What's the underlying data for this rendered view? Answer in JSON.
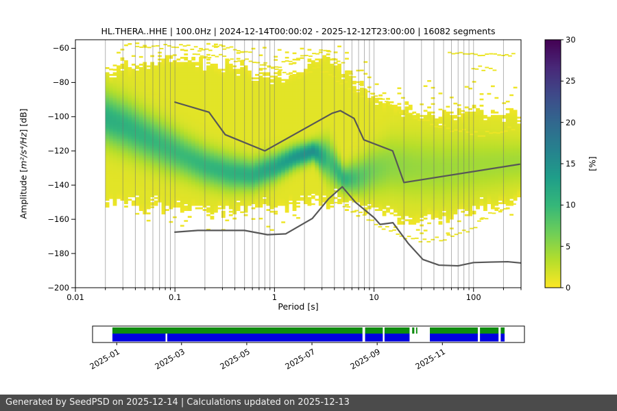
{
  "figure": {
    "title": "HL.THERA..HHE | 100.0Hz | 2024-12-14T00:00:02 - 2025-12-12T23:00:00 | 16082 segments",
    "xlabel": "Period [s]",
    "ylabel_prefix": "Amplitude [",
    "ylabel_math": "m²/s⁴/Hz",
    "ylabel_suffix": "] [dB]",
    "colorbar_label": "[%]"
  },
  "footer": {
    "text": "Generated by SeedPSD on 2025-12-14 | Calculations updated on 2025-12-13"
  },
  "chart_data": {
    "type": "heatmap",
    "title": "HL.THERA..HHE | 100.0Hz | 2024-12-14T00:00:02 - 2025-12-12T23:00:00 | 16082 segments",
    "segments": 16082,
    "xlabel": "Period [s]",
    "ylabel": "Amplitude [m²/s⁴/Hz] [dB]",
    "x_scale": "log",
    "xlim": [
      0.01,
      300
    ],
    "ylim": [
      -200,
      -55
    ],
    "grid": "vertical-log-minor",
    "x_ticks": [
      {
        "v": 0.01,
        "label": "0.01"
      },
      {
        "v": 0.1,
        "label": "0.1"
      },
      {
        "v": 1,
        "label": "1"
      },
      {
        "v": 10,
        "label": "10"
      },
      {
        "v": 100,
        "label": "100"
      }
    ],
    "y_ticks": [
      {
        "v": -200,
        "label": "−200"
      },
      {
        "v": -180,
        "label": "−180"
      },
      {
        "v": -160,
        "label": "−160"
      },
      {
        "v": -140,
        "label": "−140"
      },
      {
        "v": -120,
        "label": "−120"
      },
      {
        "v": -100,
        "label": "−100"
      },
      {
        "v": -80,
        "label": "−80"
      },
      {
        "v": -60,
        "label": "−60"
      }
    ],
    "colorbar": {
      "label": "[%]",
      "min": 0,
      "max": 30,
      "ticks": [
        {
          "v": 0,
          "label": "0"
        },
        {
          "v": 5,
          "label": "5"
        },
        {
          "v": 10,
          "label": "10"
        },
        {
          "v": 15,
          "label": "15"
        },
        {
          "v": 20,
          "label": "20"
        },
        {
          "v": 25,
          "label": "25"
        },
        {
          "v": 30,
          "label": "30"
        }
      ],
      "colormap": "viridis_r",
      "stops": [
        "#440154",
        "#482878",
        "#3e4a89",
        "#31688e",
        "#26828e",
        "#1f9e89",
        "#35b779",
        "#6ece58",
        "#b5de2b",
        "#fde725"
      ]
    },
    "psd_distribution": {
      "period_bin_decades": 0.0376,
      "db_bin": 1,
      "baseline_percent": 1.25,
      "data_period_range": [
        0.02,
        280
      ],
      "profile": [
        {
          "period": 0.02,
          "top": -77,
          "bottom": -147,
          "mode": -101,
          "sigma": 10,
          "peak": 10
        },
        {
          "period": 0.032,
          "top": -74,
          "bottom": -150,
          "mode": -106,
          "sigma": 10,
          "peak": 9.5
        },
        {
          "period": 0.05,
          "top": -72,
          "bottom": -151,
          "mode": -112,
          "sigma": 9.5,
          "peak": 9
        },
        {
          "period": 0.08,
          "top": -70,
          "bottom": -152,
          "mode": -118,
          "sigma": 9,
          "peak": 8.5
        },
        {
          "period": 0.13,
          "top": -70,
          "bottom": -153,
          "mode": -124,
          "sigma": 8,
          "peak": 8.5
        },
        {
          "period": 0.2,
          "top": -71,
          "bottom": -154,
          "mode": -129,
          "sigma": 7.5,
          "peak": 9
        },
        {
          "period": 0.35,
          "top": -73,
          "bottom": -154,
          "mode": -133,
          "sigma": 7,
          "peak": 9.5
        },
        {
          "period": 0.6,
          "top": -76,
          "bottom": -153,
          "mode": -134.5,
          "sigma": 6,
          "peak": 10
        },
        {
          "period": 1.0,
          "top": -79,
          "bottom": -151,
          "mode": -130,
          "sigma": 5.5,
          "peak": 11
        },
        {
          "period": 1.6,
          "top": -77,
          "bottom": -150,
          "mode": -124,
          "sigma": 4.5,
          "peak": 13
        },
        {
          "period": 2.5,
          "top": -70,
          "bottom": -149,
          "mode": -120.5,
          "sigma": 4,
          "peak": 14
        },
        {
          "period": 3.5,
          "top": -66,
          "bottom": -148,
          "mode": -126,
          "sigma": 8,
          "peak": 8
        },
        {
          "period": 5.0,
          "top": -75,
          "bottom": -148,
          "mode": -137,
          "sigma": 5,
          "peak": 9.5
        },
        {
          "period": 7.0,
          "top": -85,
          "bottom": -150,
          "mode": -136,
          "sigma": 7,
          "peak": 7
        },
        {
          "period": 10,
          "top": -92,
          "bottom": -152,
          "mode": -132,
          "sigma": 9,
          "peak": 5
        },
        {
          "period": 15,
          "top": -95,
          "bottom": -157,
          "mode": -129,
          "sigma": 11,
          "peak": 4
        },
        {
          "period": 25,
          "top": -98,
          "bottom": -160,
          "mode": -130,
          "sigma": 12,
          "peak": 3.5
        },
        {
          "period": 50,
          "top": -102,
          "bottom": -157,
          "mode": -131,
          "sigma": 12,
          "peak": 3.2
        },
        {
          "period": 100,
          "top": -98,
          "bottom": -152,
          "mode": -129,
          "sigma": 11,
          "peak": 3
        },
        {
          "period": 180,
          "top": -100,
          "bottom": -149,
          "mode": -128,
          "sigma": 10,
          "peak": 3
        },
        {
          "period": 280,
          "top": -102,
          "bottom": -147,
          "mode": -127,
          "sigma": 9,
          "peak": 3
        }
      ]
    },
    "noise_models": {
      "nhnm": [
        [
          0.1,
          -91.5
        ],
        [
          0.22,
          -97.4
        ],
        [
          0.32,
          -110.5
        ],
        [
          0.8,
          -120.0
        ],
        [
          3.8,
          -98.0
        ],
        [
          4.6,
          -96.5
        ],
        [
          6.3,
          -101.0
        ],
        [
          7.9,
          -113.5
        ],
        [
          15.4,
          -120.0
        ],
        [
          20.0,
          -138.5
        ],
        [
          290,
          -127.8
        ]
      ],
      "nlnm": [
        [
          0.1,
          -167.5
        ],
        [
          0.17,
          -166.5
        ],
        [
          0.5,
          -166.5
        ],
        [
          0.85,
          -169
        ],
        [
          1.3,
          -168.5
        ],
        [
          2.4,
          -159.5
        ],
        [
          3.5,
          -148
        ],
        [
          4.8,
          -141
        ],
        [
          6.5,
          -150
        ],
        [
          10,
          -159
        ],
        [
          11.5,
          -163
        ],
        [
          15.5,
          -162
        ],
        [
          22,
          -174
        ],
        [
          31,
          -183.5
        ],
        [
          45,
          -186.8
        ],
        [
          70,
          -187.2
        ],
        [
          100,
          -185.3
        ],
        [
          150,
          -185.0
        ],
        [
          220,
          -184.8
        ],
        [
          295,
          -185.5
        ]
      ]
    },
    "outlier_traces": [
      [
        [
          0.04,
          -59.5
        ],
        [
          0.07,
          -58.5
        ],
        [
          0.12,
          -59
        ],
        [
          0.2,
          -60
        ],
        [
          0.3,
          -59
        ],
        [
          0.45,
          -60.5
        ],
        [
          0.6,
          -61
        ]
      ],
      [
        [
          0.15,
          -63
        ],
        [
          0.3,
          -65
        ],
        [
          0.6,
          -67.5
        ],
        [
          1.0,
          -70
        ],
        [
          1.5,
          -67
        ],
        [
          2.2,
          -63
        ],
        [
          2.8,
          -61.5
        ],
        [
          3.4,
          -62.5
        ],
        [
          4.2,
          -67
        ],
        [
          5.2,
          -72
        ],
        [
          6.5,
          -78
        ]
      ],
      [
        [
          0.7,
          -70
        ],
        [
          1.1,
          -73
        ],
        [
          1.7,
          -76
        ],
        [
          2.4,
          -71
        ],
        [
          3.2,
          -74
        ],
        [
          4.5,
          -79
        ],
        [
          6,
          -84
        ],
        [
          8,
          -88
        ]
      ],
      [
        [
          7,
          -82
        ],
        [
          10,
          -88
        ],
        [
          15,
          -94
        ],
        [
          25,
          -100
        ],
        [
          40,
          -104
        ],
        [
          70,
          -108
        ],
        [
          110,
          -110
        ],
        [
          170,
          -108
        ],
        [
          260,
          -106
        ]
      ],
      [
        [
          55,
          -63.5
        ],
        [
          85,
          -62.5
        ],
        [
          130,
          -64
        ],
        [
          190,
          -63
        ],
        [
          260,
          -63.5
        ]
      ],
      [
        [
          95,
          -72
        ],
        [
          130,
          -71
        ],
        [
          170,
          -73
        ]
      ],
      [
        [
          4,
          -150
        ],
        [
          7,
          -157
        ],
        [
          11,
          -163
        ],
        [
          18,
          -169
        ],
        [
          28,
          -172
        ],
        [
          45,
          -171.5
        ],
        [
          70,
          -168
        ],
        [
          100,
          -163
        ],
        [
          140,
          -157
        ],
        [
          200,
          -152
        ],
        [
          270,
          -150
        ]
      ]
    ],
    "coverage_timeline": {
      "tick_labels": [
        "2025-01",
        "2025-03",
        "2025-05",
        "2025-07",
        "2025-09",
        "2025-11"
      ],
      "tick_positions": [
        0.056,
        0.206,
        0.357,
        0.508,
        0.659,
        0.81
      ],
      "data_color": "#0e8c0e",
      "psd_color": "#0000e0",
      "data_segments": [
        [
          0.046,
          0.625
        ],
        [
          0.631,
          0.672
        ],
        [
          0.676,
          0.734
        ],
        [
          0.74,
          0.745
        ],
        [
          0.749,
          0.752
        ],
        [
          0.781,
          0.892
        ],
        [
          0.897,
          0.94
        ],
        [
          0.945,
          0.954
        ]
      ],
      "psd_segments": [
        [
          0.046,
          0.169
        ],
        [
          0.173,
          0.625
        ],
        [
          0.631,
          0.672
        ],
        [
          0.676,
          0.734
        ],
        [
          0.781,
          0.892
        ],
        [
          0.897,
          0.94
        ],
        [
          0.945,
          0.954
        ]
      ]
    }
  }
}
